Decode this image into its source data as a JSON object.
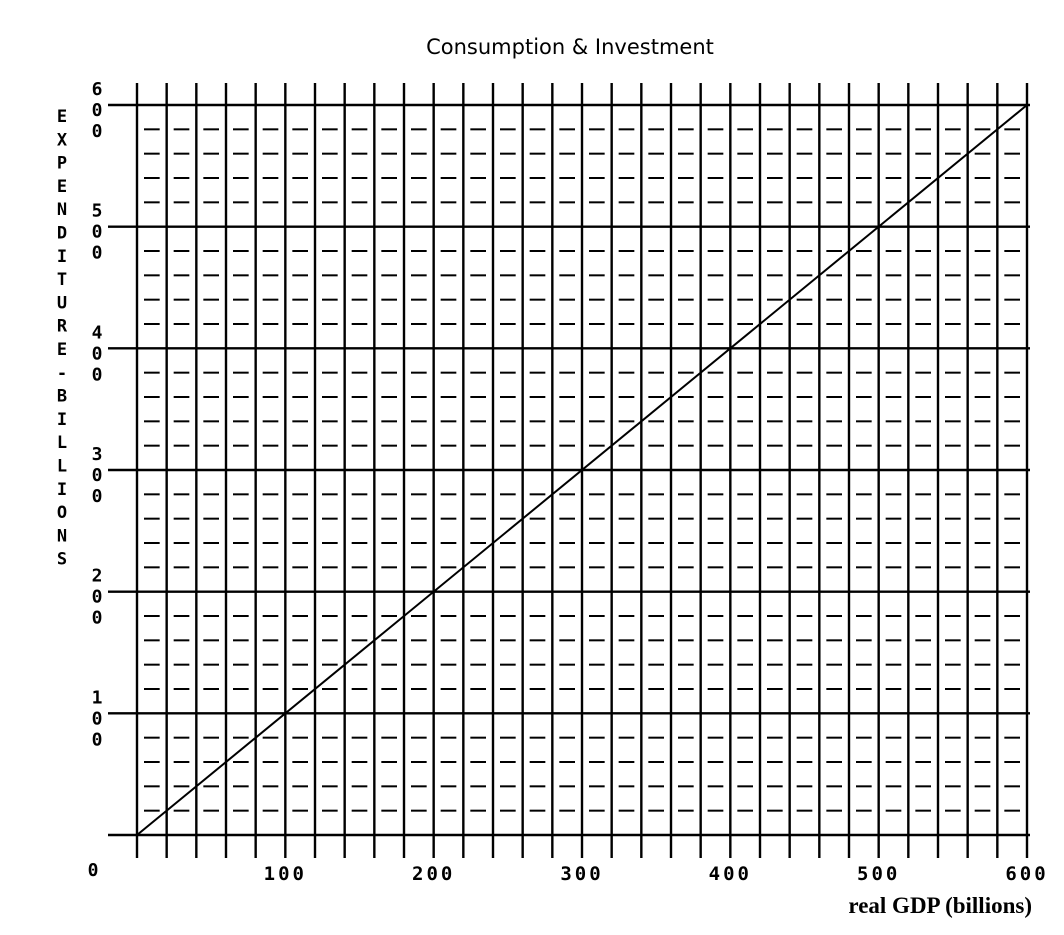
{
  "chart_data": {
    "type": "line",
    "title": "Consumption & Investment",
    "xlabel": "real GDP (billions)",
    "ylabel": "EXPENDITURE - BILLIONS",
    "xlim": [
      0,
      600
    ],
    "ylim": [
      0,
      600
    ],
    "x_ticks": [
      "100",
      "200",
      "300",
      "400",
      "500",
      "600"
    ],
    "y_ticks": [
      "100",
      "200",
      "300",
      "400",
      "500",
      "600"
    ],
    "origin_label": "0",
    "grid": true,
    "series": [
      {
        "x": [
          0,
          600
        ],
        "y": [
          0,
          600
        ]
      }
    ]
  }
}
